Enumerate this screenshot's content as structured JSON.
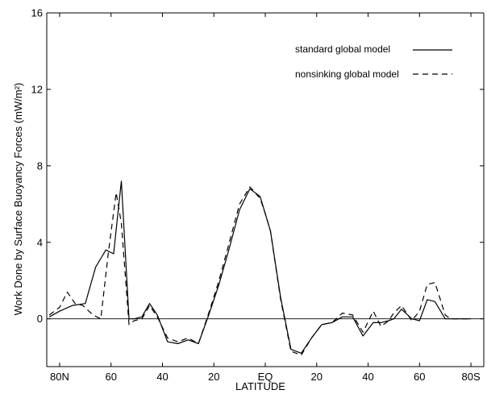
{
  "chart_data": {
    "type": "line",
    "xlabel": "LATITUDE",
    "ylabel": "Work Done by Surface Buoyancy Forces (mW/m²)",
    "xlim": [
      -85,
      85
    ],
    "ylim": [
      -2.5,
      16
    ],
    "x_ticks": [
      {
        "value": -80,
        "label": "80N"
      },
      {
        "value": -60,
        "label": "60"
      },
      {
        "value": -40,
        "label": "40"
      },
      {
        "value": -20,
        "label": "20"
      },
      {
        "value": 0,
        "label": "EQ"
      },
      {
        "value": 20,
        "label": "20"
      },
      {
        "value": 40,
        "label": "40"
      },
      {
        "value": 60,
        "label": "60"
      },
      {
        "value": 80,
        "label": "80S"
      }
    ],
    "y_ticks": [
      {
        "value": 0,
        "label": "0"
      },
      {
        "value": 4,
        "label": "4"
      },
      {
        "value": 8,
        "label": "8"
      },
      {
        "value": 12,
        "label": "12"
      },
      {
        "value": 16,
        "label": "16"
      }
    ],
    "zero_line": true,
    "grid": false,
    "legend_position": "top-right",
    "series": [
      {
        "name": "standard global model",
        "style": "solid",
        "color": "#000000",
        "x": [
          -84,
          -80,
          -75,
          -70,
          -66,
          -62,
          -59,
          -56,
          -53,
          -51,
          -48,
          -45,
          -42,
          -38,
          -34,
          -30,
          -26,
          -22,
          -18,
          -14,
          -10,
          -6,
          -2,
          0,
          2,
          6,
          10,
          14,
          18,
          22,
          26,
          30,
          34,
          38,
          42,
          45,
          48,
          50,
          53,
          57,
          60,
          63,
          66,
          70,
          72,
          76,
          80
        ],
        "y": [
          0.1,
          0.4,
          0.7,
          0.8,
          2.7,
          3.6,
          3.4,
          7.2,
          0.0,
          0.0,
          0.1,
          0.8,
          0.2,
          -1.2,
          -1.3,
          -1.1,
          -1.3,
          0.2,
          1.8,
          3.7,
          5.7,
          6.8,
          6.4,
          5.5,
          4.6,
          1.1,
          -1.6,
          -1.8,
          -1.0,
          -0.3,
          -0.2,
          0.1,
          0.1,
          -0.9,
          -0.2,
          -0.2,
          -0.1,
          0.0,
          0.5,
          0.0,
          -0.1,
          1.0,
          0.9,
          0.0,
          0.0,
          0.0,
          0.0
        ]
      },
      {
        "name": "nonsinking global model",
        "style": "dashed",
        "color": "#000000",
        "x": [
          -84,
          -80,
          -77,
          -74,
          -71,
          -67,
          -64,
          -61,
          -58,
          -56,
          -53,
          -51,
          -48,
          -45,
          -42,
          -38,
          -34,
          -30,
          -26,
          -22,
          -18,
          -14,
          -10,
          -6,
          -2,
          0,
          2,
          6,
          10,
          14,
          18,
          22,
          26,
          30,
          34,
          38,
          42,
          45,
          48,
          50,
          53,
          57,
          60,
          63,
          66,
          70,
          72,
          76,
          80
        ],
        "y": [
          0.2,
          0.6,
          1.4,
          0.8,
          0.7,
          0.2,
          0.0,
          3.5,
          6.6,
          5.0,
          -0.3,
          -0.1,
          0.0,
          0.7,
          0.1,
          -1.0,
          -1.2,
          -1.0,
          -1.3,
          0.3,
          2.0,
          4.0,
          6.0,
          6.9,
          6.3,
          5.5,
          4.6,
          1.0,
          -1.7,
          -1.9,
          -1.0,
          -0.3,
          -0.2,
          0.3,
          0.2,
          -0.7,
          0.4,
          -0.4,
          -0.1,
          0.3,
          0.7,
          -0.1,
          0.4,
          1.8,
          1.9,
          0.2,
          0.0,
          0.0,
          0.0
        ]
      }
    ]
  }
}
